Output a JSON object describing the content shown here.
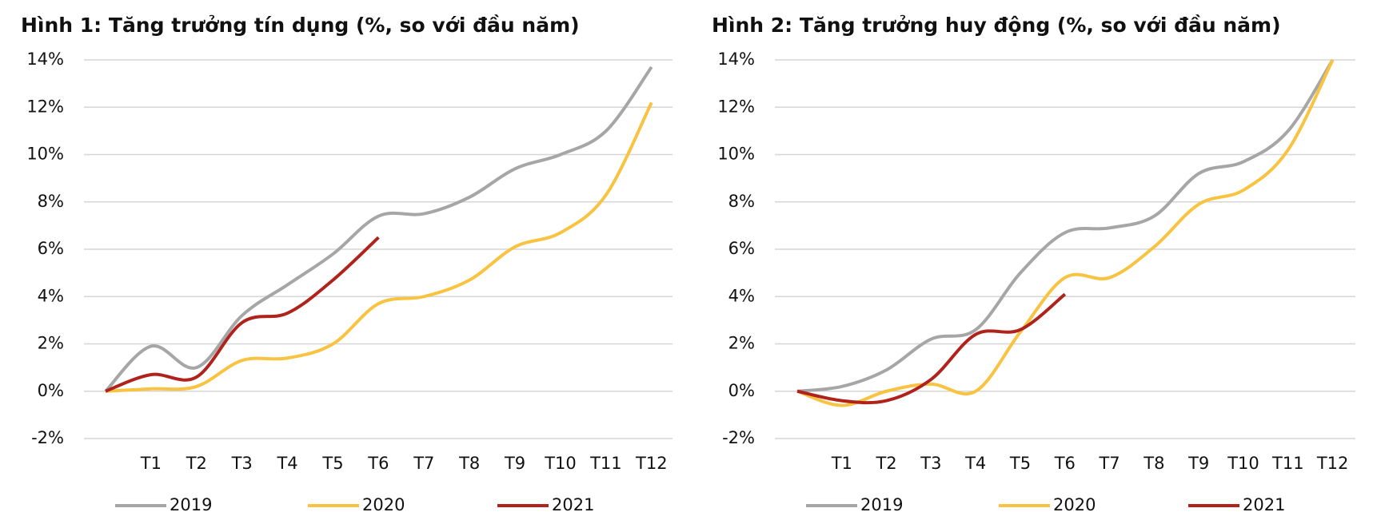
{
  "chart_data": [
    {
      "type": "line",
      "title": "Hình 1: Tăng trưởng tín dụng (%, so với đầu năm)",
      "categories": [
        null,
        "T1",
        "T2",
        "T3",
        "T4",
        "T5",
        "T6",
        "T7",
        "T8",
        "T9",
        "T10",
        "T11",
        "T12"
      ],
      "series": [
        {
          "name": "2019",
          "color": "#a6a6a6",
          "values": [
            0,
            1.9,
            1.0,
            3.2,
            4.5,
            5.8,
            7.4,
            7.5,
            8.2,
            9.4,
            10.0,
            11.0,
            13.7
          ]
        },
        {
          "name": "2020",
          "color": "#f9c342",
          "values": [
            0,
            0.1,
            0.2,
            1.3,
            1.4,
            2.0,
            3.7,
            4.0,
            4.7,
            6.1,
            6.7,
            8.3,
            12.2
          ]
        },
        {
          "name": "2021",
          "color": "#b0221c",
          "values": [
            0,
            0.7,
            0.6,
            2.9,
            3.3,
            4.7,
            6.5,
            null,
            null,
            null,
            null,
            null,
            null
          ]
        }
      ],
      "ylim": [
        -2,
        14
      ],
      "yticks": [
        {
          "value": -2,
          "label": "-2%"
        },
        {
          "value": 0,
          "label": "0%"
        },
        {
          "value": 2,
          "label": "2%"
        },
        {
          "value": 4,
          "label": "4%"
        },
        {
          "value": 6,
          "label": "6%"
        },
        {
          "value": 8,
          "label": "8%"
        },
        {
          "value": 10,
          "label": "10%"
        },
        {
          "value": 12,
          "label": "12%"
        },
        {
          "value": 14,
          "label": "14%"
        }
      ],
      "grid": true,
      "legend": "bottom"
    },
    {
      "type": "line",
      "title": "Hình 2: Tăng trưởng huy động (%, so với đầu năm)",
      "categories": [
        null,
        "T1",
        "T2",
        "T3",
        "T4",
        "T5",
        "T6",
        "T7",
        "T8",
        "T9",
        "T10",
        "T11",
        "T12"
      ],
      "series": [
        {
          "name": "2019",
          "color": "#a6a6a6",
          "values": [
            0,
            0.2,
            0.9,
            2.2,
            2.6,
            5.0,
            6.7,
            6.9,
            7.4,
            9.2,
            9.7,
            11.0,
            14.0
          ]
        },
        {
          "name": "2020",
          "color": "#f9c342",
          "values": [
            0,
            -0.6,
            0.0,
            0.3,
            0.0,
            2.5,
            4.8,
            4.8,
            6.1,
            7.9,
            8.5,
            10.2,
            14.0
          ]
        },
        {
          "name": "2021",
          "color": "#b0221c",
          "values": [
            0,
            -0.4,
            -0.4,
            0.5,
            2.4,
            2.6,
            4.1,
            null,
            null,
            null,
            null,
            null,
            null
          ]
        }
      ],
      "ylim": [
        -2,
        14
      ],
      "yticks": [
        {
          "value": -2,
          "label": "-2%"
        },
        {
          "value": 0,
          "label": "0%"
        },
        {
          "value": 2,
          "label": "2%"
        },
        {
          "value": 4,
          "label": "4%"
        },
        {
          "value": 6,
          "label": "6%"
        },
        {
          "value": 8,
          "label": "8%"
        },
        {
          "value": 10,
          "label": "10%"
        },
        {
          "value": 12,
          "label": "12%"
        },
        {
          "value": 14,
          "label": "14%"
        }
      ],
      "grid": true,
      "legend": "bottom"
    }
  ]
}
